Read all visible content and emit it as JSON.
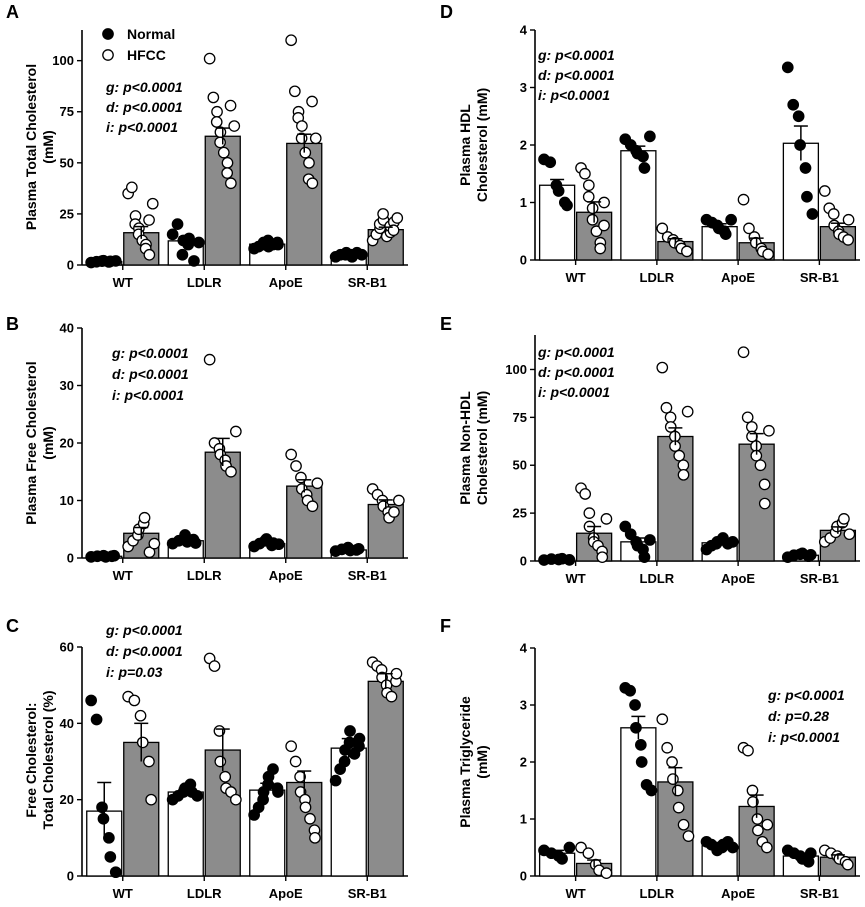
{
  "chart_data": [
    {
      "type": "bar",
      "panel_label": "A",
      "ylabel_lines": [
        "Plasma Total Cholesterol",
        "(mM)"
      ],
      "categories": [
        "WT",
        "LDLR",
        "ApoE",
        "SR-B1"
      ],
      "ylim": [
        0,
        115
      ],
      "yticks": [
        0,
        25,
        50,
        75,
        100
      ],
      "series": [
        {
          "name": "Normal",
          "values": [
            1.7,
            11.8,
            10.2,
            5.0
          ],
          "sem": [
            0.2,
            2.0,
            0.7,
            0.4
          ],
          "points": [
            [
              1.2,
              1.6,
              1.9,
              2.1,
              1.5,
              1.8,
              2.0
            ],
            [
              15,
              20,
              5,
              12,
              10,
              13,
              2,
              11
            ],
            [
              8,
              9,
              10,
              11,
              12,
              9,
              10,
              11,
              10
            ],
            [
              4,
              5,
              5,
              6,
              5,
              4,
              6,
              5
            ]
          ]
        },
        {
          "name": "HFCC",
          "values": [
            15.8,
            63.0,
            59.5,
            17.3
          ],
          "sem": [
            3.0,
            4.0,
            4.5,
            1.2
          ],
          "points": [
            [
              35,
              38,
              24,
              20,
              18,
              15,
              12,
              10,
              8,
              5,
              22,
              30
            ],
            [
              101,
              82,
              75,
              70,
              65,
              60,
              55,
              50,
              45,
              40,
              78,
              68
            ],
            [
              110,
              85,
              75,
              72,
              68,
              62,
              55,
              50,
              42,
              40,
              80,
              62
            ],
            [
              12,
              15,
              18,
              20,
              22,
              25,
              14,
              16,
              19,
              21,
              17,
              23
            ]
          ]
        }
      ],
      "legend": [
        "Normal",
        "HFCC"
      ],
      "stats": [
        "g: p<0.0001",
        "d: p<0.0001",
        "i: p<0.0001"
      ]
    },
    {
      "type": "bar",
      "panel_label": "B",
      "ylabel_lines": [
        "Plasma Free Cholesterol",
        "(mM)"
      ],
      "categories": [
        "WT",
        "LDLR",
        "ApoE",
        "SR-B1"
      ],
      "ylim": [
        0,
        40
      ],
      "yticks": [
        0,
        10,
        20,
        30,
        40
      ],
      "series": [
        {
          "name": "Normal",
          "values": [
            0.3,
            3.0,
            2.5,
            1.4
          ],
          "sem": [
            0.1,
            0.4,
            0.3,
            0.2
          ],
          "points": [
            [
              0.2,
              0.3,
              0.4,
              0.2,
              0.3,
              0.4
            ],
            [
              2.5,
              3.0,
              4.0,
              2.8,
              3.2,
              2.6
            ],
            [
              2.0,
              2.5,
              3.0,
              3.3,
              2.2,
              2.6,
              2.4
            ],
            [
              1.2,
              1.5,
              1.8,
              1.3,
              1.4,
              1.6
            ]
          ]
        },
        {
          "name": "HFCC",
          "values": [
            4.3,
            18.4,
            12.5,
            9.3
          ],
          "sem": [
            1.0,
            2.4,
            1.1,
            0.8
          ],
          "points": [
            [
              2,
              3,
              4,
              5,
              6,
              7,
              1,
              2.5
            ],
            [
              34.5,
              20,
              19,
              18,
              17,
              16,
              15,
              22
            ],
            [
              18,
              16,
              14,
              12,
              11,
              10,
              9,
              13
            ],
            [
              12,
              11,
              10,
              9,
              8,
              7,
              8,
              10
            ]
          ]
        }
      ],
      "stats": [
        "g: p<0.0001",
        "d: p<0.0001",
        "i: p<0.0001"
      ]
    },
    {
      "type": "bar",
      "panel_label": "C",
      "ylabel_lines": [
        "Free Cholesterol:",
        "Total Cholesterol (%)"
      ],
      "categories": [
        "WT",
        "LDLR",
        "ApoE",
        "SR-B1"
      ],
      "ylim": [
        0,
        60
      ],
      "yticks": [
        0,
        20,
        40,
        60
      ],
      "series": [
        {
          "name": "Normal",
          "values": [
            17.0,
            22.0,
            22.5,
            33.5
          ],
          "sem": [
            7.5,
            1.0,
            1.8,
            2.5
          ],
          "points": [
            [
              46,
              41,
              18,
              15,
              10,
              5,
              1
            ],
            [
              20,
              21,
              22,
              23,
              24,
              22,
              21
            ],
            [
              16,
              18,
              20,
              22,
              24,
              26,
              28,
              23,
              22
            ],
            [
              25,
              28,
              30,
              33,
              35,
              38,
              32,
              34,
              36
            ]
          ]
        },
        {
          "name": "HFCC",
          "values": [
            35.0,
            33.0,
            24.5,
            51.0
          ],
          "sem": [
            5.0,
            5.5,
            3.0,
            2.0
          ],
          "points": [
            [
              47,
              46,
              42,
              35,
              30,
              20
            ],
            [
              57,
              55,
              38,
              30,
              26,
              23,
              22,
              20
            ],
            [
              34,
              30,
              26,
              22,
              20,
              18,
              15,
              12,
              10
            ],
            [
              56,
              55,
              54,
              52,
              50,
              48,
              47,
              51,
              53
            ]
          ]
        }
      ],
      "stats": [
        "g: p<0.0001",
        "d: p<0.0001",
        "i: p=0.03"
      ]
    },
    {
      "type": "bar",
      "panel_label": "D",
      "ylabel_lines": [
        "Plasma HDL",
        "Cholesterol (mM)"
      ],
      "categories": [
        "WT",
        "LDLR",
        "ApoE",
        "SR-B1"
      ],
      "ylim": [
        0,
        4
      ],
      "yticks": [
        0,
        1,
        2,
        3,
        4
      ],
      "series": [
        {
          "name": "Normal",
          "values": [
            1.3,
            1.9,
            0.58,
            2.03
          ],
          "sem": [
            0.1,
            0.08,
            0.05,
            0.3
          ],
          "points": [
            [
              1.75,
              1.7,
              1.3,
              1.2,
              1.0,
              0.95
            ],
            [
              2.1,
              2.0,
              1.9,
              1.85,
              1.8,
              1.6,
              2.15
            ],
            [
              0.7,
              0.65,
              0.6,
              0.55,
              0.5,
              0.45,
              0.7
            ],
            [
              3.35,
              2.7,
              2.5,
              2.0,
              1.6,
              1.1,
              0.8
            ]
          ]
        },
        {
          "name": "HFCC",
          "values": [
            0.83,
            0.32,
            0.3,
            0.58
          ],
          "sem": [
            0.18,
            0.05,
            0.08,
            0.06
          ],
          "points": [
            [
              1.6,
              1.5,
              1.3,
              1.1,
              0.9,
              0.7,
              0.5,
              0.3,
              0.2,
              1.0,
              0.6
            ],
            [
              0.55,
              0.4,
              0.35,
              0.3,
              0.25,
              0.2,
              0.15
            ],
            [
              1.05,
              0.55,
              0.4,
              0.3,
              0.2,
              0.15,
              0.1
            ],
            [
              1.2,
              0.9,
              0.8,
              0.6,
              0.5,
              0.45,
              0.4,
              0.35,
              0.7
            ]
          ]
        }
      ],
      "stats": [
        "g: p<0.0001",
        "d: p<0.0001",
        "i: p<0.0001"
      ]
    },
    {
      "type": "bar",
      "panel_label": "E",
      "ylabel_lines": [
        "Plasma Non-HDL",
        "Cholesterol (mM)"
      ],
      "categories": [
        "WT",
        "LDLR",
        "ApoE",
        "SR-B1"
      ],
      "ylim": [
        0,
        118
      ],
      "yticks": [
        0,
        25,
        50,
        75,
        100
      ],
      "series": [
        {
          "name": "Normal",
          "values": [
            0.8,
            10.0,
            9.5,
            3.0
          ],
          "sem": [
            0.3,
            2.0,
            0.8,
            0.3
          ],
          "points": [
            [
              0.5,
              1.0,
              0.8,
              1.2,
              0.6
            ],
            [
              18,
              14,
              10,
              8,
              6,
              2,
              11
            ],
            [
              6,
              8,
              9,
              10,
              11,
              12,
              9,
              10
            ],
            [
              2,
              3,
              3.5,
              4,
              2.5,
              3.2
            ]
          ]
        },
        {
          "name": "HFCC",
          "values": [
            14.5,
            65.0,
            61.0,
            16.0
          ],
          "sem": [
            3.5,
            4.5,
            5.5,
            1.8
          ],
          "points": [
            [
              38,
              35,
              25,
              18,
              12,
              10,
              8,
              5,
              2,
              22
            ],
            [
              101,
              80,
              75,
              70,
              65,
              60,
              55,
              50,
              45,
              78
            ],
            [
              109,
              75,
              70,
              65,
              60,
              55,
              50,
              40,
              30,
              68
            ],
            [
              10,
              12,
              15,
              18,
              20,
              22,
              14
            ]
          ]
        }
      ],
      "stats": [
        "g: p<0.0001",
        "d: p<0.0001",
        "i: p<0.0001"
      ]
    },
    {
      "type": "bar",
      "panel_label": "F",
      "ylabel_lines": [
        "Plasma Triglyceride",
        "(mM)"
      ],
      "categories": [
        "WT",
        "LDLR",
        "ApoE",
        "SR-B1"
      ],
      "ylim": [
        0,
        4
      ],
      "yticks": [
        0,
        1,
        2,
        3,
        4
      ],
      "series": [
        {
          "name": "Normal",
          "values": [
            0.4,
            2.6,
            0.53,
            0.35
          ],
          "sem": [
            0.05,
            0.2,
            0.03,
            0.03
          ],
          "points": [
            [
              0.45,
              0.4,
              0.35,
              0.3,
              0.5
            ],
            [
              3.3,
              3.25,
              3.0,
              2.6,
              2.3,
              2.0,
              1.6,
              1.5
            ],
            [
              0.6,
              0.55,
              0.5,
              0.45,
              0.5,
              0.55,
              0.6,
              0.5
            ],
            [
              0.45,
              0.4,
              0.35,
              0.3,
              0.25,
              0.4
            ]
          ]
        },
        {
          "name": "HFCC",
          "values": [
            0.22,
            1.65,
            1.22,
            0.33
          ],
          "sem": [
            0.06,
            0.25,
            0.2,
            0.04
          ],
          "points": [
            [
              0.5,
              0.4,
              0.2,
              0.1,
              0.05
            ],
            [
              2.75,
              2.25,
              2.0,
              1.7,
              1.5,
              1.2,
              0.9,
              0.7
            ],
            [
              2.25,
              2.2,
              1.5,
              1.3,
              1.0,
              0.8,
              0.6,
              0.5,
              0.9
            ],
            [
              0.45,
              0.4,
              0.35,
              0.3,
              0.25,
              0.2
            ]
          ]
        }
      ],
      "stats": [
        "g: p<0.0001",
        "d: p=0.28",
        "i: p<0.0001"
      ]
    }
  ]
}
